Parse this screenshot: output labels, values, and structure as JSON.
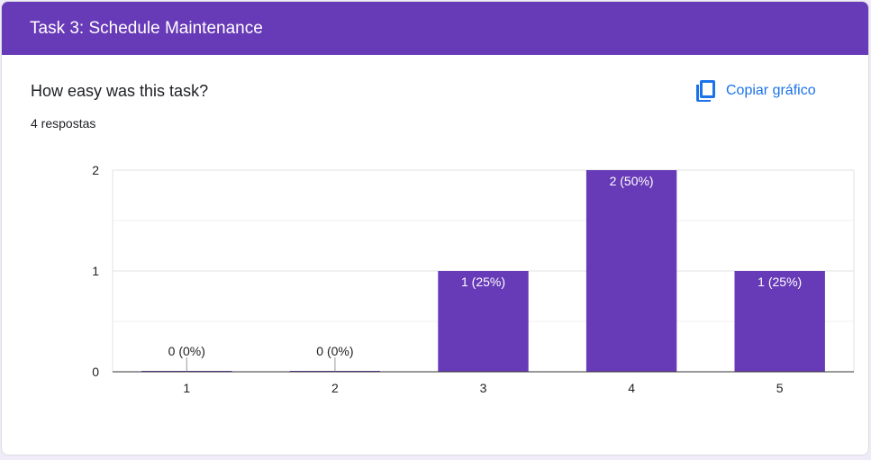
{
  "header": {
    "title": "Task 3: Schedule Maintenance"
  },
  "question": {
    "title": "How easy was this task?",
    "responses": "4 respostas"
  },
  "actions": {
    "copy_label": "Copiar gráfico",
    "copy_icon": "copy-icon"
  },
  "colors": {
    "accent": "#673ab7",
    "link": "#1a73e8",
    "background": "#f0ebf8"
  },
  "chart_data": {
    "type": "bar",
    "categories": [
      "1",
      "2",
      "3",
      "4",
      "5"
    ],
    "values": [
      0,
      0,
      1,
      2,
      1
    ],
    "data_labels": [
      "0 (0%)",
      "0 (0%)",
      "1 (25%)",
      "2 (50%)",
      "1 (25%)"
    ],
    "yticks": [
      "0",
      "1",
      "2"
    ],
    "ylim": [
      0,
      2
    ],
    "xlabel": "",
    "ylabel": "",
    "grid": true,
    "color": "#673ab7"
  }
}
